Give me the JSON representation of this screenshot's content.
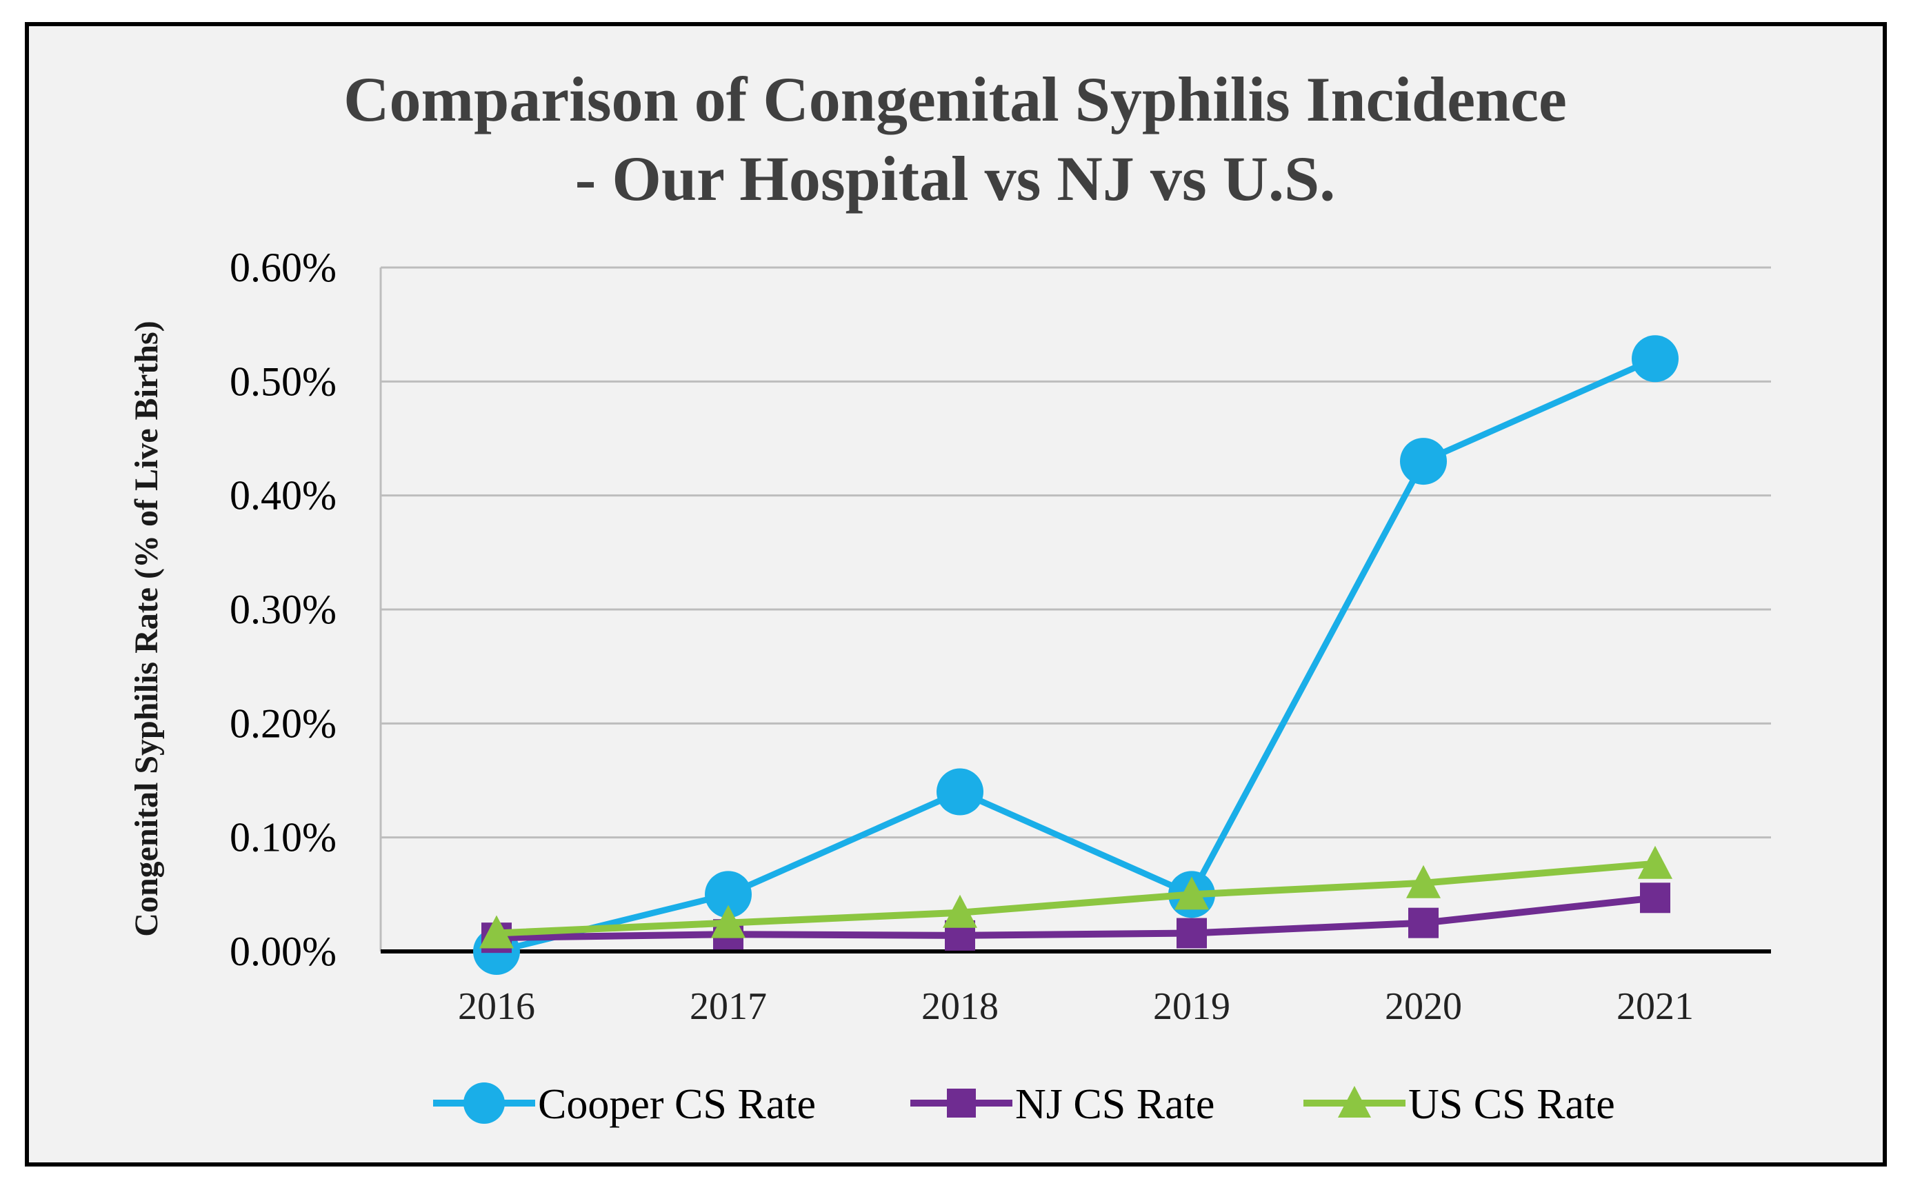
{
  "chart_data": {
    "type": "line",
    "title_lines": [
      "Comparison of Congenital Syphilis Incidence",
      "- Our Hospital vs NJ vs U.S."
    ],
    "xlabel": "",
    "ylabel": "Congenital Syphilis Rate (% of Live Births)",
    "categories": [
      "2016",
      "2017",
      "2018",
      "2019",
      "2020",
      "2021"
    ],
    "ylim": [
      0,
      0.6
    ],
    "y_ticks": [
      0,
      0.1,
      0.2,
      0.3,
      0.4,
      0.5,
      0.6
    ],
    "y_tick_labels": [
      "0.00%",
      "0.10%",
      "0.20%",
      "0.30%",
      "0.40%",
      "0.50%",
      "0.60%"
    ],
    "grid": true,
    "legend_position": "bottom",
    "series": [
      {
        "name": "Cooper CS Rate",
        "marker": "circle",
        "color": "#1aaee8",
        "values": [
          0.0,
          0.05,
          0.14,
          0.05,
          0.43,
          0.52
        ]
      },
      {
        "name": "NJ CS Rate",
        "marker": "square",
        "color": "#6f2c91",
        "values": [
          0.012,
          0.015,
          0.014,
          0.016,
          0.025,
          0.047
        ]
      },
      {
        "name": "US CS Rate",
        "marker": "triangle",
        "color": "#8cc641",
        "values": [
          0.016,
          0.025,
          0.034,
          0.05,
          0.06,
          0.077
        ]
      }
    ]
  }
}
